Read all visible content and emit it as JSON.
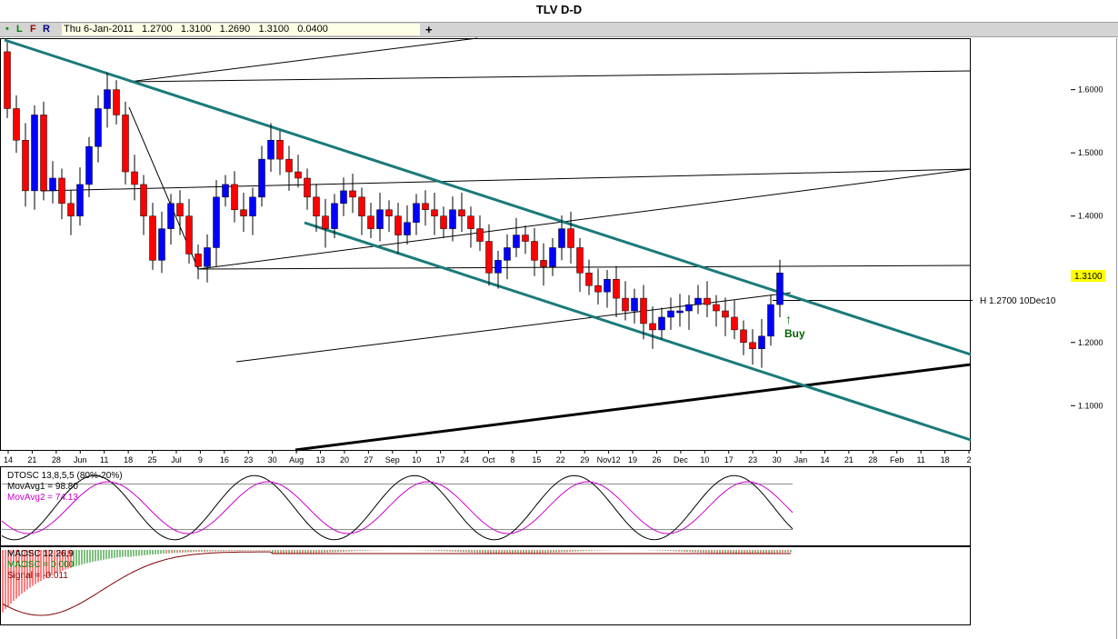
{
  "title": "TLV D-D",
  "toolbar": {
    "dot": "•",
    "l": "L",
    "f": "F",
    "r": "R",
    "ohlc": "Thu 6-Jan-2011   1.2700   1.3100   1.2690   1.3100   0.0400",
    "crosshair": "+"
  },
  "colors": {
    "up": "#0000ff",
    "down": "#ff0000",
    "channel": "#1a7a7a",
    "signal": "#cc00cc",
    "buy": "#006600"
  },
  "chart_data": [
    {
      "type": "candlestick",
      "ylim": [
        1.03,
        1.68
      ],
      "yticks": [
        "1.1000",
        "1.2000",
        "1.3000",
        "1.4000",
        "1.5000",
        "1.6000"
      ],
      "xticks": [
        "14",
        "21",
        "28",
        "Jun",
        "11",
        "18",
        "25",
        "Jul",
        "9",
        "16",
        "23",
        "30",
        "Aug",
        "13",
        "20",
        "27",
        "Sep",
        "10",
        "17",
        "24",
        "Oct",
        "8",
        "15",
        "22",
        "29",
        "Nov12",
        "19",
        "26",
        "Dec",
        "10",
        "17",
        "23",
        "30",
        "Jan",
        "14",
        "21",
        "28",
        "Feb",
        "11",
        "18",
        "2"
      ],
      "last_price": "1.3100",
      "hline_label": "H 1.2700  10Dec10",
      "annotation": "Buy",
      "closes": [
        1.57,
        1.52,
        1.44,
        1.56,
        1.44,
        1.46,
        1.42,
        1.4,
        1.45,
        1.51,
        1.57,
        1.6,
        1.56,
        1.47,
        1.45,
        1.4,
        1.33,
        1.38,
        1.42,
        1.4,
        1.34,
        1.32,
        1.35,
        1.43,
        1.45,
        1.41,
        1.4,
        1.43,
        1.49,
        1.52,
        1.49,
        1.47,
        1.46,
        1.43,
        1.4,
        1.38,
        1.42,
        1.44,
        1.43,
        1.4,
        1.38,
        1.41,
        1.4,
        1.37,
        1.39,
        1.42,
        1.41,
        1.4,
        1.38,
        1.41,
        1.4,
        1.38,
        1.36,
        1.31,
        1.33,
        1.35,
        1.37,
        1.36,
        1.33,
        1.32,
        1.35,
        1.38,
        1.35,
        1.31,
        1.29,
        1.28,
        1.3,
        1.27,
        1.25,
        1.27,
        1.23,
        1.22,
        1.24,
        1.25,
        1.25,
        1.26,
        1.27,
        1.26,
        1.25,
        1.24,
        1.22,
        1.2,
        1.19,
        1.21,
        1.26,
        1.31
      ],
      "dtosc": {
        "label": "DTOSC 13,8,5,5 (80%-20%)",
        "ma1_label": "MovAvg1 = 98.80",
        "ma2_label": "MovAvg2 = 74.13",
        "levels": [
          80,
          20
        ]
      },
      "maosc": {
        "label": "MAOSC 12,26,9",
        "maosc_label": "MAOSC = 0.000",
        "signal_label": "Signal = -0.011"
      }
    }
  ]
}
